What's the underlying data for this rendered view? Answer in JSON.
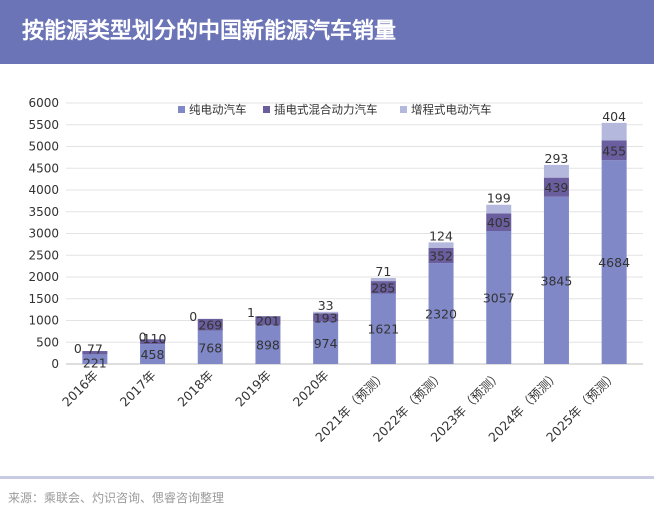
{
  "header": {
    "title": "按能源类型划分的中国新能源汽车销量"
  },
  "footer": {
    "source": "来源：乘联会、灼识咨询、偲睿咨询整理"
  },
  "colors": {
    "header_bg": "#6b74b7",
    "bev": "#8088c8",
    "phev": "#6a5e9e",
    "erev": "#b5b8dd"
  },
  "chart_data": {
    "type": "bar",
    "stacked": true,
    "title": "",
    "xlabel": "",
    "ylabel": "",
    "ylim": [
      0,
      6000
    ],
    "yticks": [
      0,
      500,
      1000,
      1500,
      2000,
      2500,
      3000,
      3500,
      4000,
      4500,
      5000,
      5500,
      6000
    ],
    "grid": true,
    "legend_position": "top",
    "categories": [
      "2016年",
      "2017年",
      "2018年",
      "2019年",
      "2020年",
      "2021年（预测）",
      "2022年（预测）",
      "2023年（预测）",
      "2024年（预测）",
      "2025年（预测）"
    ],
    "series": [
      {
        "name": "纯电动汽车",
        "color": "#8088c8",
        "values": [
          221,
          458,
          768,
          898,
          974,
          1621,
          2320,
          3057,
          3845,
          4684
        ]
      },
      {
        "name": "插电式混合动力汽车",
        "color": "#6a5e9e",
        "values": [
          77,
          110,
          269,
          201,
          193,
          285,
          352,
          405,
          439,
          455
        ]
      },
      {
        "name": "增程式电动汽车",
        "color": "#b5b8dd",
        "values": [
          0,
          0,
          0,
          1,
          33,
          71,
          124,
          199,
          293,
          404
        ]
      }
    ]
  }
}
